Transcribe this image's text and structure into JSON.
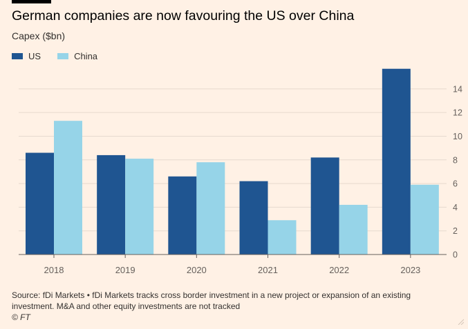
{
  "title": "German companies are now favouring the US over China",
  "subtitle": "Capex ($bn)",
  "source": "Source: fDi Markets • fDi Markets tracks cross border investment in a new project or expansion of an existing investment. M&A and other equity investments are not tracked",
  "credit": "© FT",
  "colors": {
    "background": "#fff1e5",
    "us": "#1f5591",
    "china": "#96d4e8",
    "grid": "#e6d9ce",
    "axis": "#66605c"
  },
  "chart_data": {
    "type": "bar",
    "title": "German companies are now favouring the US over China",
    "subtitle": "Capex ($bn)",
    "xlabel": "",
    "ylabel": "",
    "categories": [
      "2018",
      "2019",
      "2020",
      "2021",
      "2022",
      "2023"
    ],
    "series": [
      {
        "name": "US",
        "color": "#1f5591",
        "values": [
          8.6,
          8.4,
          6.6,
          6.2,
          8.2,
          15.7
        ]
      },
      {
        "name": "China",
        "color": "#96d4e8",
        "values": [
          11.3,
          8.1,
          7.8,
          2.9,
          4.2,
          5.9
        ]
      }
    ],
    "ylim": [
      0,
      15.8
    ],
    "yticks": [
      0,
      2,
      4,
      6,
      8,
      10,
      12,
      14
    ],
    "y_axis_position": "right",
    "grid": true,
    "legend_position": "top-left"
  }
}
